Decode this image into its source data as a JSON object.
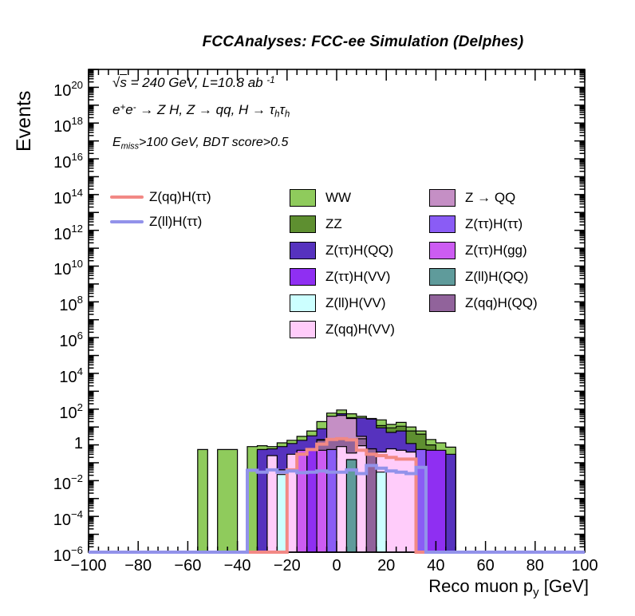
{
  "title": "FCCAnalyses: FCC-ee Simulation (Delphes)",
  "annotations": {
    "line1": {
      "sqrt": "√",
      "s": "s",
      "rest": " = 240 GeV, L=10.8 ab ",
      "sup": "-1"
    },
    "line2": {
      "e1": "e",
      "sup1": "+",
      "e2": "e",
      "sup2": "-",
      "mid": " → Z H, Z  → qq, H  → ",
      "tau1": "τ",
      "sub1": "h",
      "tau2": "τ",
      "sub2": "h"
    },
    "line3": {
      "E": "E",
      "sub": "miss",
      "rest": ">100 GeV, BDT score>0.5"
    }
  },
  "legend": {
    "lines": [
      {
        "label": "Z(qq)H(ττ)",
        "color": "#F28985"
      },
      {
        "label": "Z(ll)H(ττ)",
        "color": "#9292EA"
      }
    ],
    "col1": [
      {
        "label": "WW",
        "color": "#8FCB5C"
      },
      {
        "label": "ZZ",
        "color": "#5E8F30"
      },
      {
        "label": "Z(ττ)H(QQ)",
        "color": "#5632BE"
      },
      {
        "label": "Z(ττ)H(VV)",
        "color": "#8F2FF2"
      },
      {
        "label": "Z(ll)H(VV)",
        "color": "#CCFFFF"
      },
      {
        "label": "Z(qq)H(VV)",
        "color": "#FFCCFA"
      }
    ],
    "col2": [
      {
        "label": "Z → QQ",
        "color": "#C58FC5"
      },
      {
        "label": "Z(ττ)H(ττ)",
        "color": "#8A5CF5"
      },
      {
        "label": "Z(ττ)H(gg)",
        "color": "#CC5CF2"
      },
      {
        "label": "Z(ll)H(QQ)",
        "color": "#5F9B9B"
      },
      {
        "label": "Z(qq)H(QQ)",
        "color": "#91639B"
      }
    ]
  },
  "chart_data": {
    "type": "bar",
    "subtype": "overlaid-step-histograms-logy",
    "title": "FCCAnalyses: FCC-ee Simulation (Delphes)",
    "xlabel": "Reco muon p_y [GeV]",
    "ylabel": "Events",
    "bin_width": 4,
    "axes": {
      "x": {
        "title_pre": "Reco muon p",
        "title_sub": "y",
        "title_post": " [GeV]",
        "min": -100,
        "max": 100,
        "major_step": 20,
        "minor_step": 4,
        "tick_labels": [
          "−100",
          "−80",
          "−60",
          "−40",
          "−20",
          "0",
          "20",
          "40",
          "60",
          "80",
          "100"
        ]
      },
      "y": {
        "title": "Events",
        "scale": "log",
        "min_pow": -6,
        "max_pow": 21,
        "label_pows": [
          -6,
          -4,
          -2,
          0,
          2,
          4,
          6,
          8,
          10,
          12,
          14,
          16,
          18,
          20
        ]
      }
    },
    "series": [
      {
        "name": "WW",
        "type": "fill",
        "color": "#8FCB5C",
        "bins": [
          [
            -56,
            0.55
          ],
          [
            -48,
            0.55
          ],
          [
            -44,
            0.55
          ],
          [
            -36,
            0.8
          ],
          [
            -32,
            0.9
          ],
          [
            -28,
            0.8
          ],
          [
            -24,
            1.3
          ],
          [
            -20,
            1.8
          ],
          [
            -16,
            3
          ],
          [
            -12,
            6
          ],
          [
            -8,
            20
          ],
          [
            -4,
            60
          ],
          [
            0,
            90
          ],
          [
            4,
            55
          ],
          [
            8,
            40
          ],
          [
            12,
            30
          ],
          [
            16,
            25
          ],
          [
            20,
            14
          ],
          [
            24,
            18
          ],
          [
            28,
            10
          ],
          [
            32,
            6
          ],
          [
            36,
            2
          ],
          [
            40,
            1.3
          ],
          [
            44,
            0.75
          ]
        ]
      },
      {
        "name": "ZZ",
        "type": "fill",
        "color": "#5E8F30",
        "bins": [
          [
            -32,
            0.45
          ],
          [
            -28,
            0.5
          ],
          [
            -24,
            0.55
          ],
          [
            -20,
            1.0
          ],
          [
            -16,
            1.4
          ],
          [
            -12,
            2.5
          ],
          [
            -8,
            6
          ],
          [
            -4,
            15
          ],
          [
            0,
            30
          ],
          [
            4,
            26
          ],
          [
            8,
            28
          ],
          [
            12,
            25
          ],
          [
            16,
            12
          ],
          [
            20,
            9
          ],
          [
            24,
            11
          ],
          [
            28,
            6
          ],
          [
            32,
            4
          ],
          [
            36,
            1.0
          ]
        ]
      },
      {
        "name": "Z(ττ)H(QQ)",
        "type": "fill",
        "color": "#5632BE",
        "bins": [
          [
            -32,
            0.55
          ],
          [
            -28,
            0.6
          ],
          [
            -24,
            0.8
          ],
          [
            -20,
            1.2
          ],
          [
            -16,
            1.8
          ],
          [
            -12,
            3.2
          ],
          [
            -8,
            8
          ],
          [
            -4,
            40
          ],
          [
            0,
            55
          ],
          [
            4,
            33
          ],
          [
            8,
            32
          ],
          [
            12,
            28
          ],
          [
            16,
            9
          ],
          [
            20,
            5
          ],
          [
            24,
            6
          ],
          [
            28,
            1.2
          ],
          [
            32,
            0.5
          ],
          [
            36,
            0.5
          ],
          [
            40,
            0.45
          ],
          [
            44,
            0.3
          ]
        ]
      },
      {
        "name": "Z → QQ",
        "type": "fill",
        "color": "#C58FC5",
        "bins": [
          [
            -8,
            2
          ],
          [
            -4,
            40
          ],
          [
            0,
            44
          ],
          [
            4,
            30
          ],
          [
            8,
            3
          ]
        ]
      },
      {
        "name": "Z(qq)H(QQ)",
        "type": "fill",
        "color": "#91639B",
        "bins": [
          [
            -12,
            0.6
          ],
          [
            -8,
            1.8
          ],
          [
            -4,
            1.9
          ],
          [
            0,
            1.9
          ],
          [
            4,
            1.8
          ],
          [
            8,
            2.2
          ],
          [
            12,
            0.6
          ],
          [
            16,
            0.35
          ],
          [
            20,
            0.4
          ],
          [
            24,
            0.3
          ]
        ]
      },
      {
        "name": "Z(qq)H(VV)",
        "type": "fill",
        "color": "#FFCCFA",
        "bins": [
          [
            -28,
            0.25
          ],
          [
            -24,
            0.04
          ],
          [
            -20,
            0.3
          ],
          [
            -16,
            0.06
          ],
          [
            -12,
            0.07
          ],
          [
            -8,
            0.12
          ],
          [
            -4,
            0.2
          ],
          [
            0,
            0.8
          ],
          [
            4,
            0.35
          ],
          [
            8,
            0.9
          ],
          [
            16,
            0.4
          ],
          [
            20,
            0.6
          ],
          [
            24,
            0.5
          ],
          [
            28,
            0.4
          ],
          [
            32,
            0.3
          ],
          [
            36,
            0.4
          ],
          [
            40,
            0.25
          ]
        ]
      },
      {
        "name": "Z(ττ)H(VV)",
        "type": "fill",
        "color": "#8F2FF2",
        "bins": [
          [
            -12,
            0.5
          ],
          [
            36,
            0.5
          ],
          [
            40,
            0.5
          ]
        ]
      },
      {
        "name": "Z(ττ)H(ττ)",
        "type": "fill",
        "color": "#8A5CF5",
        "bins": [
          [
            -4,
            0.55
          ],
          [
            32,
            0.55
          ]
        ]
      },
      {
        "name": "Z(ττ)H(gg)",
        "type": "fill",
        "color": "#CC5CF2",
        "bins": [
          [
            -16,
            0.5
          ],
          [
            -8,
            0.5
          ]
        ]
      },
      {
        "name": "Z(ll)H(QQ)",
        "type": "fill",
        "color": "#5F9B9B",
        "bins": [
          [
            4,
            0.15
          ]
        ]
      },
      {
        "name": "Z(ll)H(VV)",
        "type": "fill",
        "color": "#CCFFFF",
        "bins": [
          [
            -24,
            0.022
          ],
          [
            16,
            0.03
          ]
        ]
      }
    ],
    "lines": [
      {
        "name": "Z(qq)H(ττ)",
        "color": "#F28985",
        "width": 4,
        "x_start": -36,
        "x_end": 36,
        "bins": [
          [
            -36,
            0
          ],
          [
            -32,
            0
          ],
          [
            -28,
            0
          ],
          [
            -24,
            0
          ],
          [
            -20,
            0.04
          ],
          [
            -16,
            0.3
          ],
          [
            -12,
            0.55
          ],
          [
            -8,
            1.1
          ],
          [
            -4,
            2.0
          ],
          [
            0,
            2.2
          ],
          [
            4,
            1.9
          ],
          [
            8,
            0.5
          ],
          [
            12,
            0.3
          ],
          [
            16,
            0.25
          ],
          [
            20,
            0.2
          ],
          [
            24,
            0.16
          ],
          [
            28,
            0.16
          ],
          [
            32,
            0
          ]
        ]
      },
      {
        "name": "Z(ll)H(ττ)",
        "color": "#9292EA",
        "width": 4,
        "x_start": -100,
        "x_end": 100,
        "bins": [
          [
            -36,
            0.038
          ],
          [
            -32,
            0.03
          ],
          [
            -28,
            0.04
          ],
          [
            -24,
            0.03
          ],
          [
            -20,
            0.035
          ],
          [
            -16,
            0.028
          ],
          [
            -12,
            0.03
          ],
          [
            -8,
            0.035
          ],
          [
            -4,
            0.03
          ],
          [
            0,
            0.03
          ],
          [
            4,
            0.04
          ],
          [
            8,
            0.025
          ],
          [
            12,
            0.07
          ],
          [
            16,
            0.05
          ],
          [
            20,
            0.035
          ],
          [
            24,
            0.03
          ],
          [
            28,
            0.025
          ],
          [
            32,
            0.055
          ]
        ]
      }
    ]
  }
}
